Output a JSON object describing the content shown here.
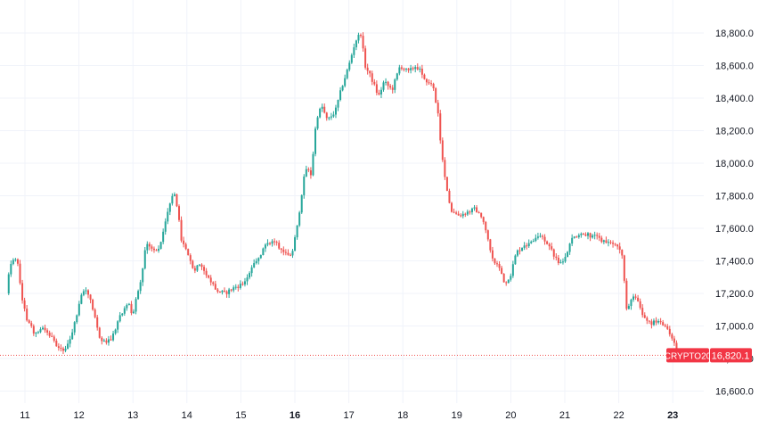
{
  "chart_data": {
    "type": "candlestick",
    "symbol": "CRYPTO20",
    "last_price": "16,820.1",
    "x_labels": [
      {
        "label": "11",
        "day": 11,
        "bold": false
      },
      {
        "label": "12",
        "day": 12,
        "bold": false
      },
      {
        "label": "13",
        "day": 13,
        "bold": false
      },
      {
        "label": "14",
        "day": 14,
        "bold": false
      },
      {
        "label": "15",
        "day": 15,
        "bold": false
      },
      {
        "label": "16",
        "day": 16,
        "bold": true
      },
      {
        "label": "17",
        "day": 17,
        "bold": false
      },
      {
        "label": "18",
        "day": 18,
        "bold": false
      },
      {
        "label": "19",
        "day": 19,
        "bold": false
      },
      {
        "label": "20",
        "day": 20,
        "bold": false
      },
      {
        "label": "21",
        "day": 21,
        "bold": false
      },
      {
        "label": "22",
        "day": 22,
        "bold": false
      },
      {
        "label": "23",
        "day": 23,
        "bold": true
      }
    ],
    "y_ticks": [
      16600,
      16800,
      17000,
      17200,
      17400,
      17600,
      17800,
      18000,
      18200,
      18400,
      18600,
      18800
    ],
    "y_tick_labels": [
      "16,600.0",
      "16,800.0",
      "17,000.0",
      "17,200.0",
      "17,400.0",
      "17,600.0",
      "17,800.0",
      "18,000.0",
      "18,200.0",
      "18,400.0",
      "18,600.0",
      "18,800.0"
    ],
    "ylim": [
      16500,
      18890
    ],
    "xlim": [
      10.6,
      23.4
    ],
    "grid": true,
    "colors": {
      "up": "#26a69a",
      "down": "#ef5350",
      "grid": "#f0f3fa",
      "axis_text": "#131722",
      "price_line": "#ef5350",
      "label_bg": "#f23645",
      "label_text": "#ffffff"
    },
    "price_path": [
      [
        10.6,
        17200
      ],
      [
        10.75,
        17380
      ],
      [
        10.85,
        17420
      ],
      [
        10.95,
        17150
      ],
      [
        11.05,
        17020
      ],
      [
        11.2,
        16950
      ],
      [
        11.35,
        16980
      ],
      [
        11.5,
        16930
      ],
      [
        11.6,
        16880
      ],
      [
        11.72,
        16840
      ],
      [
        11.82,
        16900
      ],
      [
        11.95,
        17060
      ],
      [
        12.05,
        17200
      ],
      [
        12.15,
        17220
      ],
      [
        12.25,
        17120
      ],
      [
        12.35,
        16960
      ],
      [
        12.45,
        16900
      ],
      [
        12.6,
        16920
      ],
      [
        12.75,
        17050
      ],
      [
        12.9,
        17150
      ],
      [
        13.0,
        17060
      ],
      [
        13.05,
        17150
      ],
      [
        13.15,
        17280
      ],
      [
        13.25,
        17520
      ],
      [
        13.35,
        17470
      ],
      [
        13.45,
        17460
      ],
      [
        13.55,
        17550
      ],
      [
        13.65,
        17700
      ],
      [
        13.75,
        17830
      ],
      [
        13.82,
        17720
      ],
      [
        13.9,
        17530
      ],
      [
        14.0,
        17450
      ],
      [
        14.12,
        17340
      ],
      [
        14.25,
        17390
      ],
      [
        14.4,
        17300
      ],
      [
        14.55,
        17220
      ],
      [
        14.7,
        17200
      ],
      [
        14.9,
        17240
      ],
      [
        15.05,
        17260
      ],
      [
        15.2,
        17350
      ],
      [
        15.35,
        17430
      ],
      [
        15.5,
        17520
      ],
      [
        15.65,
        17510
      ],
      [
        15.8,
        17450
      ],
      [
        15.95,
        17450
      ],
      [
        16.05,
        17620
      ],
      [
        16.12,
        17800
      ],
      [
        16.2,
        17970
      ],
      [
        16.3,
        17930
      ],
      [
        16.4,
        18280
      ],
      [
        16.5,
        18350
      ],
      [
        16.6,
        18260
      ],
      [
        16.75,
        18320
      ],
      [
        16.88,
        18480
      ],
      [
        17.0,
        18600
      ],
      [
        17.12,
        18750
      ],
      [
        17.22,
        18800
      ],
      [
        17.3,
        18600
      ],
      [
        17.42,
        18520
      ],
      [
        17.55,
        18410
      ],
      [
        17.65,
        18500
      ],
      [
        17.8,
        18450
      ],
      [
        17.95,
        18600
      ],
      [
        18.1,
        18560
      ],
      [
        18.25,
        18600
      ],
      [
        18.4,
        18520
      ],
      [
        18.55,
        18480
      ],
      [
        18.65,
        18300
      ],
      [
        18.72,
        18050
      ],
      [
        18.8,
        17850
      ],
      [
        18.9,
        17700
      ],
      [
        19.05,
        17680
      ],
      [
        19.2,
        17700
      ],
      [
        19.35,
        17720
      ],
      [
        19.5,
        17630
      ],
      [
        19.65,
        17420
      ],
      [
        19.78,
        17360
      ],
      [
        19.88,
        17260
      ],
      [
        20.0,
        17320
      ],
      [
        20.1,
        17450
      ],
      [
        20.25,
        17500
      ],
      [
        20.4,
        17520
      ],
      [
        20.55,
        17560
      ],
      [
        20.7,
        17500
      ],
      [
        20.85,
        17400
      ],
      [
        20.95,
        17380
      ],
      [
        21.05,
        17460
      ],
      [
        21.15,
        17550
      ],
      [
        21.3,
        17560
      ],
      [
        21.45,
        17560
      ],
      [
        21.6,
        17540
      ],
      [
        21.75,
        17520
      ],
      [
        21.9,
        17500
      ],
      [
        22.05,
        17470
      ],
      [
        22.15,
        17080
      ],
      [
        22.25,
        17200
      ],
      [
        22.35,
        17150
      ],
      [
        22.45,
        17060
      ],
      [
        22.6,
        17020
      ],
      [
        22.75,
        17030
      ],
      [
        22.85,
        16990
      ],
      [
        22.95,
        16950
      ],
      [
        23.05,
        16870
      ],
      [
        23.12,
        16820
      ]
    ]
  }
}
